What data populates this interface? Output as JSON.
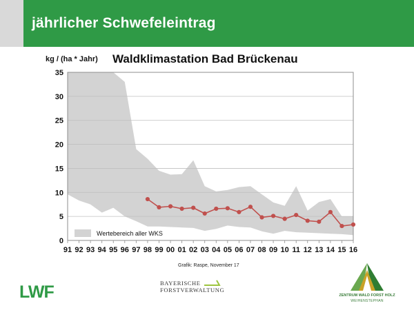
{
  "slide": {
    "title": "jährlicher Schwefeleintrag",
    "credit": "Grafik: Raspe, November 17"
  },
  "logos": {
    "lwf": "LWF",
    "bayern_line1": "BAYERISCHE",
    "bayern_line2": "FORSTVERWALTUNG",
    "zwf_line1": "ZENTRUM WALD FORST HOLZ",
    "zwf_line2": "WEIHENSTEPHAN"
  },
  "colors": {
    "title_bar": "#2f9a46",
    "range_fill": "#d3d3d3",
    "series_line": "#c0504d",
    "grid": "#bfbfbf"
  },
  "chart_data": {
    "type": "area",
    "title": "Waldklimastation Bad Brückenau",
    "ylabel": "kg / (ha * Jahr)",
    "xlabel": "",
    "ylim": [
      0,
      35
    ],
    "yticks": [
      0,
      5,
      10,
      15,
      20,
      25,
      30,
      35
    ],
    "grid": true,
    "legend": "bottom-left",
    "categories": [
      "91",
      "92",
      "93",
      "94",
      "95",
      "96",
      "97",
      "98",
      "99",
      "00",
      "01",
      "02",
      "03",
      "04",
      "05",
      "06",
      "07",
      "08",
      "09",
      "10",
      "11",
      "12",
      "13",
      "14",
      "15",
      "16"
    ],
    "range": {
      "name": "Wertebereich aller WKS",
      "upper": [
        35,
        35,
        35,
        35,
        35,
        33,
        19,
        17,
        14.5,
        13.7,
        13.8,
        16.7,
        11.3,
        10.2,
        10.5,
        11.1,
        11.3,
        9.6,
        7.9,
        7.2,
        11.3,
        6.2,
        8,
        8.6,
        5,
        5
      ],
      "lower": [
        9.6,
        8.3,
        7.5,
        5.8,
        6.8,
        5,
        4,
        2.9,
        2.9,
        2.8,
        2.7,
        2.6,
        2,
        2.4,
        3.1,
        2.8,
        2.7,
        1.9,
        1.4,
        2,
        1.7,
        1.6,
        1.5,
        1.4,
        1.3,
        1.1
      ]
    },
    "series": [
      {
        "x": [
          "98",
          "99",
          "00",
          "01",
          "02",
          "03",
          "04",
          "05",
          "06",
          "07",
          "08",
          "09",
          "10",
          "11",
          "12",
          "13",
          "14",
          "15",
          "16"
        ],
        "values": [
          8.6,
          6.9,
          7.1,
          6.6,
          6.8,
          5.6,
          6.6,
          6.7,
          5.9,
          7,
          4.8,
          5.1,
          4.5,
          5.3,
          4.1,
          3.9,
          5.9,
          3,
          3.3
        ]
      }
    ]
  }
}
